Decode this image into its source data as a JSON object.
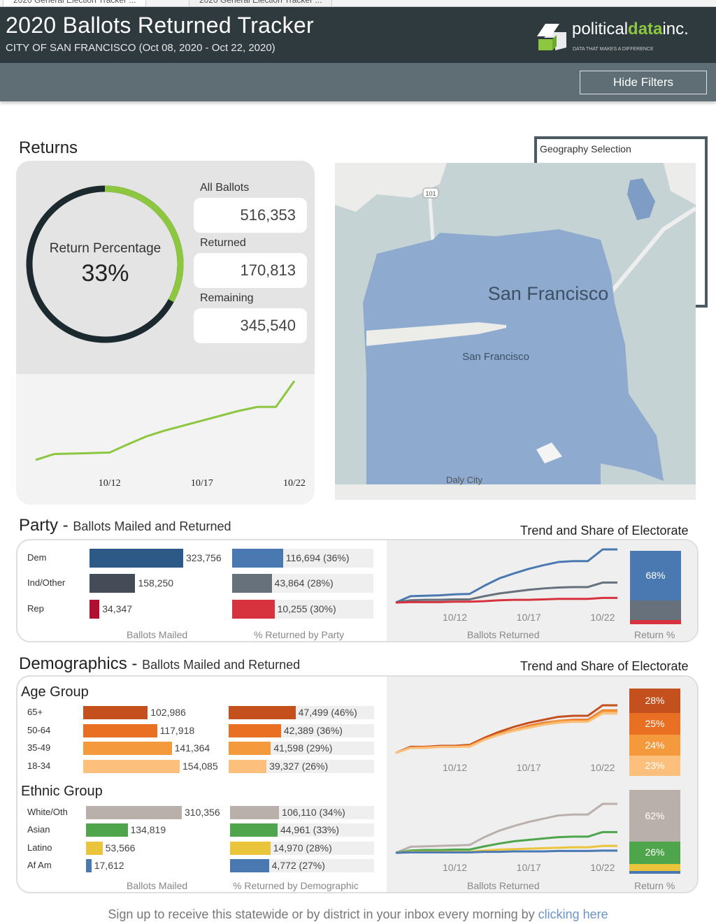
{
  "browser_tabs": [
    "2020 General Election Tracker ...",
    "2020 General Election Tracker ..."
  ],
  "header": {
    "title": "2020 Ballots Returned Tracker",
    "subtitle": "CITY OF SAN FRANCISCO (Oct 08, 2020 - Oct 22, 2020)",
    "logo": {
      "text_a": "political",
      "text_b": "data",
      "text_c": "inc.",
      "tagline": "DATA THAT MAKES A DIFFERENCE"
    }
  },
  "filters": {
    "hide_label": "Hide Filters",
    "geography_label": "Geography Selection"
  },
  "returns": {
    "heading": "Returns",
    "donut": {
      "label": "Return Percentage",
      "value": "33%",
      "fraction": 0.33,
      "colors": {
        "fill": "#8dc63f",
        "track": "#1c2a30"
      }
    },
    "stats": [
      {
        "label": "All Ballots",
        "value": "516,353"
      },
      {
        "label": "Returned",
        "value": "170,813"
      },
      {
        "label": "Remaining",
        "value": "345,540"
      }
    ],
    "trend": {
      "type": "line",
      "x": [
        "10/8",
        "10/9",
        "10/10",
        "10/11",
        "10/12",
        "10/13",
        "10/14",
        "10/15",
        "10/16",
        "10/17",
        "10/18",
        "10/19",
        "10/20",
        "10/21",
        "10/22"
      ],
      "xticks": [
        "10/12",
        "10/17",
        "10/22"
      ],
      "series": [
        {
          "color": "#8dc63f",
          "values": [
            10000,
            22000,
            23000,
            24000,
            25000,
            42000,
            58000,
            70000,
            80000,
            90000,
            100000,
            110000,
            118000,
            118000,
            170813
          ]
        }
      ]
    }
  },
  "map": {
    "label_large": "San Francisco",
    "label_small": "San Francisco",
    "label_daly": "Daly City",
    "shield": "101",
    "colors": {
      "water": "#c6d3d5",
      "land": "#8eaace"
    }
  },
  "party": {
    "heading": "Party",
    "subheading": "Ballots Mailed and Returned",
    "trend_heading": "Trend and Share of Electorate",
    "mailed_axis": "Ballots Mailed",
    "returned_axis": "% Returned by Party",
    "trend_axis": "Ballots Returned",
    "share_axis": "Return %",
    "rows": [
      {
        "label": "Dem",
        "mailed": 323756,
        "mailed_text": "323,756",
        "returned_text": "116,694 (36%)",
        "pct": 0.36,
        "mailed_color": "#2c5985",
        "color": "#4a78b0"
      },
      {
        "label": "Ind/Other",
        "mailed": 158250,
        "mailed_text": "158,250",
        "returned_text": "43,864 (28%)",
        "pct": 0.28,
        "mailed_color": "#454c58",
        "color": "#66717c"
      },
      {
        "label": "Rep",
        "mailed": 34347,
        "mailed_text": "34,347",
        "returned_text": "10,255 (30%)",
        "pct": 0.3,
        "mailed_color": "#b0102f",
        "color": "#d7333f"
      }
    ],
    "trend": {
      "type": "line",
      "x": [
        "10/8",
        "10/9",
        "10/10",
        "10/11",
        "10/12",
        "10/13",
        "10/14",
        "10/15",
        "10/16",
        "10/17",
        "10/18",
        "10/19",
        "10/20",
        "10/21",
        "10/22",
        "10/23"
      ],
      "xticks": [
        "10/12",
        "10/17",
        "10/22"
      ],
      "series": [
        {
          "color": "#4a78b0",
          "values": [
            0,
            14000,
            15000,
            16000,
            18000,
            19000,
            37000,
            53000,
            64000,
            74000,
            82000,
            89000,
            91000,
            91000,
            116694,
            116694
          ]
        },
        {
          "color": "#66717c",
          "values": [
            0,
            5000,
            6000,
            6000,
            7000,
            7000,
            14000,
            20000,
            24000,
            28000,
            31000,
            33000,
            34000,
            34000,
            43864,
            43864
          ]
        },
        {
          "color": "#d7333f",
          "values": [
            0,
            1000,
            1000,
            1000,
            2000,
            2000,
            3000,
            5000,
            6000,
            6000,
            7000,
            8000,
            8000,
            8000,
            10255,
            10255
          ]
        }
      ]
    },
    "share": [
      {
        "value": 0.68,
        "label": "68%",
        "color": "#4a78b0"
      },
      {
        "value": 0.26,
        "label": "",
        "color": "#66717c"
      },
      {
        "value": 0.06,
        "label": "",
        "color": "#d7333f"
      }
    ]
  },
  "demographics": {
    "heading": "Demographics",
    "subheading": "Ballots Mailed and Returned",
    "trend_heading": "Trend and Share of Electorate",
    "mailed_axis": "Ballots Mailed",
    "returned_axis": "% Returned by Demographic",
    "trend_axis": "Ballots Returned",
    "share_axis": "Return %",
    "age": {
      "label": "Age Group",
      "rows": [
        {
          "label": "65+",
          "mailed": 102986,
          "mailed_text": "102,986",
          "returned_text": "47,499 (46%)",
          "pct": 0.46,
          "color": "#c4501d"
        },
        {
          "label": "50-64",
          "mailed": 117918,
          "mailed_text": "117,918",
          "returned_text": "42,389 (36%)",
          "pct": 0.36,
          "color": "#e96f22"
        },
        {
          "label": "35-49",
          "mailed": 141364,
          "mailed_text": "141,364",
          "returned_text": "41,598 (29%)",
          "pct": 0.29,
          "color": "#f59a3c"
        },
        {
          "label": "18-34",
          "mailed": 154085,
          "mailed_text": "154,085",
          "returned_text": "39,327 (26%)",
          "pct": 0.26,
          "color": "#fcc07c"
        }
      ],
      "trend": {
        "type": "line",
        "x": [
          "10/8",
          "10/9",
          "10/10",
          "10/11",
          "10/12",
          "10/13",
          "10/14",
          "10/15",
          "10/16",
          "10/17",
          "10/18",
          "10/19",
          "10/20",
          "10/21",
          "10/22",
          "10/23"
        ],
        "xticks": [
          "10/12",
          "10/17",
          "10/22"
        ],
        "series": [
          {
            "color": "#c4501d",
            "values": [
              0,
              6000,
              6000,
              7000,
              7000,
              8000,
              15000,
              21000,
              26000,
              30000,
              33000,
              36000,
              37000,
              37000,
              47499,
              47499
            ]
          },
          {
            "color": "#e96f22",
            "values": [
              0,
              5000,
              6000,
              6000,
              6000,
              7000,
              14000,
              19000,
              23000,
              27000,
              30000,
              32000,
              33000,
              33000,
              42389,
              42389
            ]
          },
          {
            "color": "#f59a3c",
            "values": [
              0,
              5000,
              5000,
              6000,
              6000,
              7000,
              13000,
              19000,
              23000,
              26000,
              29000,
              32000,
              32000,
              32000,
              41598,
              41598
            ]
          },
          {
            "color": "#fcc07c",
            "values": [
              0,
              5000,
              5000,
              6000,
              6000,
              6000,
              13000,
              18000,
              22000,
              25000,
              28000,
              30000,
              31000,
              31000,
              39327,
              39327
            ]
          }
        ]
      },
      "share": [
        {
          "value": 0.28,
          "label": "28%",
          "color": "#c4501d"
        },
        {
          "value": 0.25,
          "label": "25%",
          "color": "#e96f22"
        },
        {
          "value": 0.24,
          "label": "24%",
          "color": "#f59a3c"
        },
        {
          "value": 0.23,
          "label": "23%",
          "color": "#fcc07c"
        }
      ]
    },
    "ethnic": {
      "label": "Ethnic Group",
      "rows": [
        {
          "label": "White/Oth",
          "mailed": 310356,
          "mailed_text": "310,356",
          "returned_text": "106,110 (34%)",
          "pct": 0.34,
          "color": "#b9b0ac"
        },
        {
          "label": "Asian",
          "mailed": 134819,
          "mailed_text": "134,819",
          "returned_text": "44,961 (33%)",
          "pct": 0.33,
          "color": "#4ea54b"
        },
        {
          "label": "Latino",
          "mailed": 53566,
          "mailed_text": "53,566",
          "returned_text": "14,970 (28%)",
          "pct": 0.28,
          "color": "#eac53c"
        },
        {
          "label": "Af Am",
          "mailed": 17612,
          "mailed_text": "17,612",
          "returned_text": "4,772 (27%)",
          "pct": 0.27,
          "color": "#4a78b0"
        }
      ],
      "trend": {
        "type": "line",
        "x": [
          "10/8",
          "10/9",
          "10/10",
          "10/11",
          "10/12",
          "10/13",
          "10/14",
          "10/15",
          "10/16",
          "10/17",
          "10/18",
          "10/19",
          "10/20",
          "10/21",
          "10/22",
          "10/23"
        ],
        "xticks": [
          "10/12",
          "10/17",
          "10/22"
        ],
        "series": [
          {
            "color": "#b9b0ac",
            "values": [
              0,
              13000,
              14000,
              15000,
              16000,
              17000,
              34000,
              48000,
              58000,
              67000,
              74000,
              81000,
              83000,
              83000,
              106110,
              106110
            ]
          },
          {
            "color": "#4ea54b",
            "values": [
              0,
              5000,
              6000,
              6000,
              7000,
              7000,
              14000,
              20000,
              25000,
              28000,
              31000,
              34000,
              35000,
              35000,
              44961,
              44961
            ]
          },
          {
            "color": "#eac53c",
            "values": [
              0,
              2000,
              2000,
              2000,
              2000,
              2000,
              5000,
              7000,
              8000,
              9000,
              10000,
              11000,
              12000,
              12000,
              14970,
              14970
            ]
          },
          {
            "color": "#4a78b0",
            "values": [
              0,
              1000,
              1000,
              1000,
              1000,
              1000,
              2000,
              2000,
              3000,
              3000,
              3000,
              4000,
              4000,
              4000,
              4772,
              4772
            ]
          }
        ]
      },
      "share": [
        {
          "value": 0.62,
          "label": "62%",
          "color": "#b9b0ac"
        },
        {
          "value": 0.26,
          "label": "26%",
          "color": "#4ea54b"
        },
        {
          "value": 0.09,
          "label": "",
          "color": "#eac53c"
        },
        {
          "value": 0.03,
          "label": "",
          "color": "#4a78b0"
        }
      ]
    }
  },
  "footer": {
    "text": "Sign up to receive this statewide or by district in your inbox every morning by ",
    "link": "clicking here"
  }
}
